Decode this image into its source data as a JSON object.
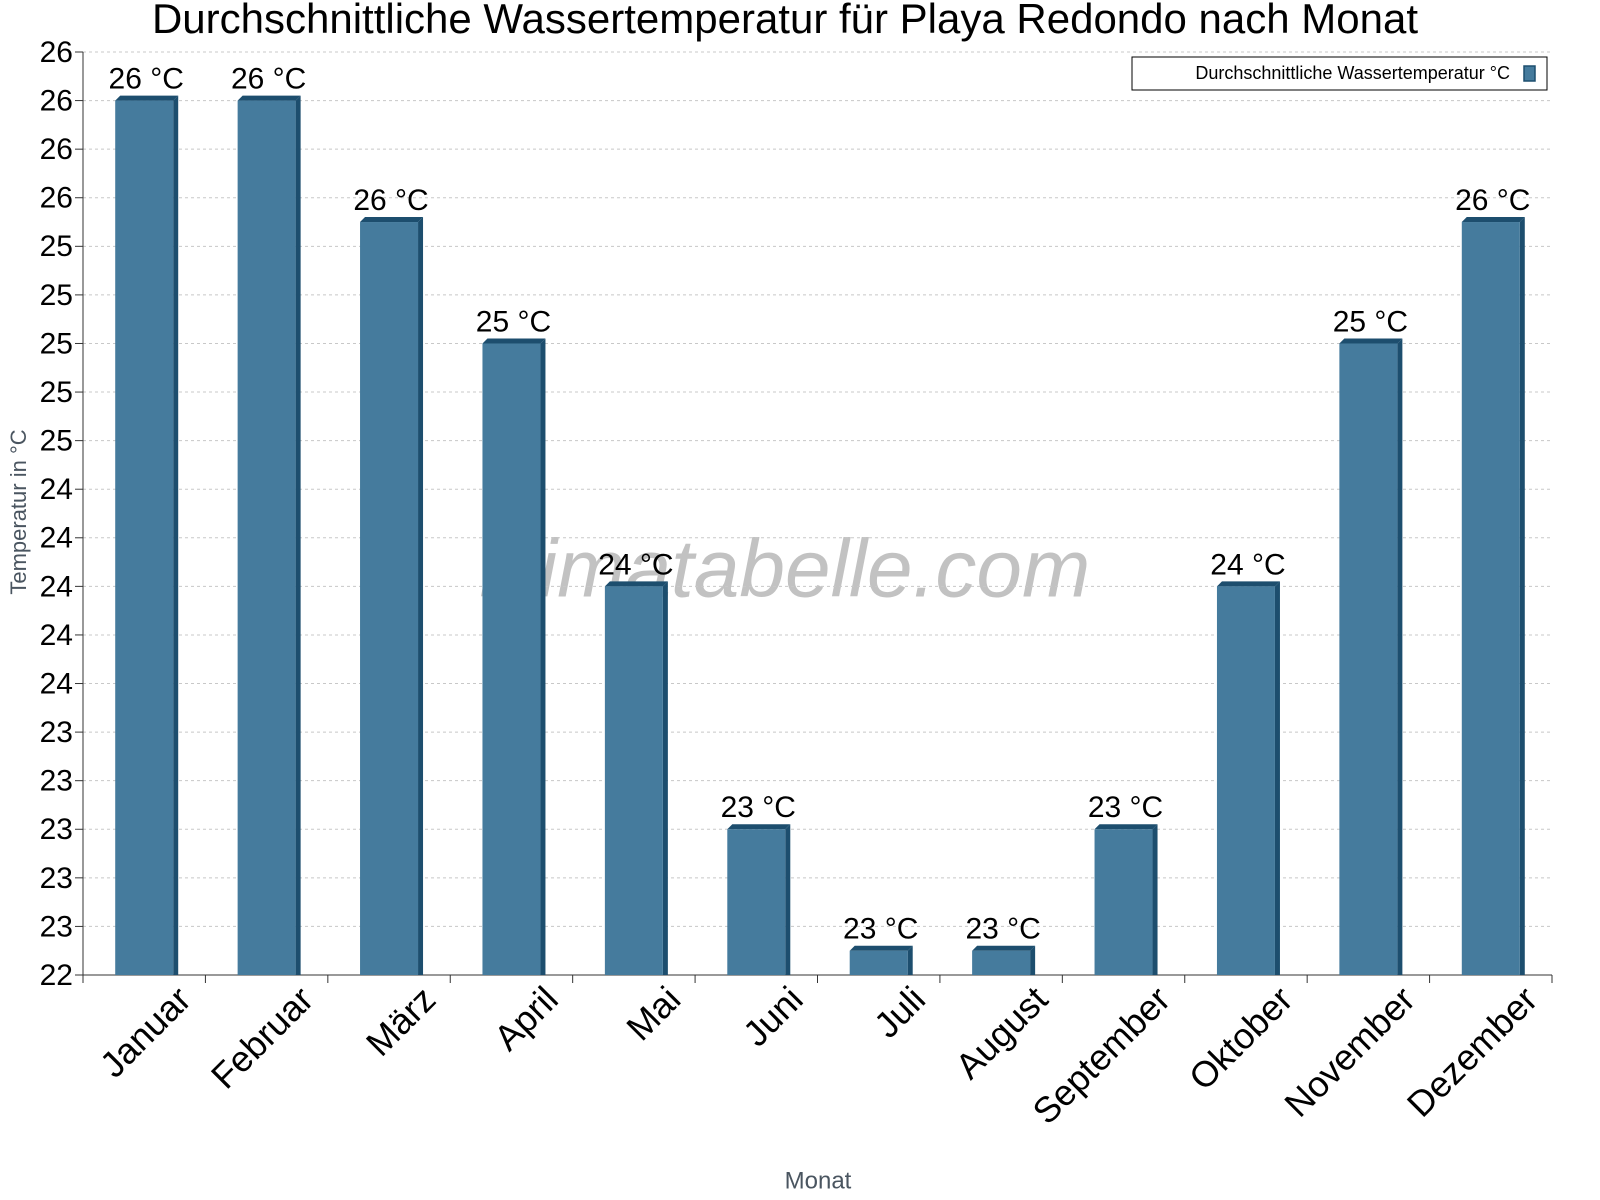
{
  "chart_data": {
    "type": "bar",
    "title": "Durchschnittliche Wassertemperatur für Playa Redondo nach Monat",
    "x_label": "Monat",
    "y_label": "Temperatur in °C",
    "watermark": "klimatabelle.com",
    "categories": [
      "Januar",
      "Februar",
      "März",
      "April",
      "Mai",
      "Juni",
      "Juli",
      "August",
      "September",
      "Oktober",
      "November",
      "Dezember"
    ],
    "series": [
      {
        "name": "Durchschnittliche Wassertemperatur °C",
        "color": "#457b9d",
        "side_color": "#1d4e6e",
        "values": [
          26.0,
          26.0,
          25.5,
          25.0,
          24.0,
          23.0,
          22.5,
          22.5,
          23.0,
          24.0,
          25.0,
          25.5
        ],
        "value_labels": [
          "26 °C",
          "26 °C",
          "26 °C",
          "25 °C",
          "24 °C",
          "23 °C",
          "23 °C",
          "23 °C",
          "23 °C",
          "24 °C",
          "25 °C",
          "26 °C"
        ]
      }
    ],
    "ylim": [
      22.4,
      26.2
    ],
    "yticks": [
      {
        "value": 22.4,
        "label": "22"
      },
      {
        "value": 22.6,
        "label": "23"
      },
      {
        "value": 22.8,
        "label": "23"
      },
      {
        "value": 23.0,
        "label": "23"
      },
      {
        "value": 23.2,
        "label": "23"
      },
      {
        "value": 23.4,
        "label": "23"
      },
      {
        "value": 23.6,
        "label": "24"
      },
      {
        "value": 23.8,
        "label": "24"
      },
      {
        "value": 24.0,
        "label": "24"
      },
      {
        "value": 24.2,
        "label": "24"
      },
      {
        "value": 24.4,
        "label": "24"
      },
      {
        "value": 24.6,
        "label": "25"
      },
      {
        "value": 24.8,
        "label": "25"
      },
      {
        "value": 25.0,
        "label": "25"
      },
      {
        "value": 25.2,
        "label": "25"
      },
      {
        "value": 25.4,
        "label": "25"
      },
      {
        "value": 25.6,
        "label": "26"
      },
      {
        "value": 25.8,
        "label": "26"
      },
      {
        "value": 26.0,
        "label": "26"
      },
      {
        "value": 26.2,
        "label": "26"
      }
    ],
    "grid": true,
    "legend": "top-right"
  }
}
